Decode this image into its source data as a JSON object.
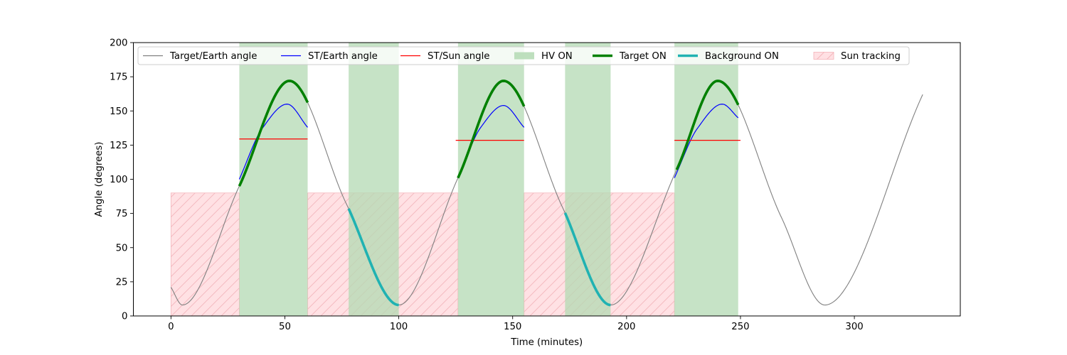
{
  "chart_data": {
    "type": "line",
    "title": "",
    "xlabel": "Time (minutes)",
    "ylabel": "Angle (degrees)",
    "xlim": [
      -16.5,
      346.5
    ],
    "ylim": [
      0,
      200
    ],
    "xticks": [
      0,
      50,
      100,
      150,
      200,
      250,
      300
    ],
    "yticks": [
      0,
      25,
      50,
      75,
      100,
      125,
      150,
      175,
      200
    ],
    "grid": false,
    "legend_position": "top-center",
    "colors": {
      "target_earth": "#808080",
      "st_earth": "#0000ff",
      "st_sun": "#ff0000",
      "hv_on": "#b3d9b3",
      "target_on": "#008000",
      "background_on": "#20b2b2",
      "sun_tracking_fill": "#ffe0e3",
      "sun_tracking_edge": "#f4b3b9"
    },
    "legend": [
      {
        "key": "target_earth",
        "label": "Target/Earth angle",
        "kind": "line"
      },
      {
        "key": "st_earth",
        "label": "ST/Earth angle",
        "kind": "line"
      },
      {
        "key": "st_sun",
        "label": "ST/Sun angle",
        "kind": "line"
      },
      {
        "key": "hv_on",
        "label": "HV ON",
        "kind": "patch"
      },
      {
        "key": "target_on",
        "label": "Target ON",
        "kind": "thickline"
      },
      {
        "key": "background_on",
        "label": "Background ON",
        "kind": "thickline"
      },
      {
        "key": "sun_tracking",
        "label": "Sun tracking",
        "kind": "hatch"
      }
    ],
    "hv_on_intervals": [
      [
        30,
        60
      ],
      [
        78,
        100
      ],
      [
        126,
        155
      ],
      [
        173,
        193
      ],
      [
        221,
        249
      ]
    ],
    "sun_tracking_intervals": [
      [
        0,
        30,
        90
      ],
      [
        60,
        126,
        90
      ],
      [
        155,
        221,
        90
      ]
    ],
    "target_earth_angle": {
      "x": [
        0,
        5,
        30,
        52,
        77,
        100,
        126,
        146,
        172,
        193,
        222,
        240,
        268,
        287,
        330
      ],
      "y": [
        21,
        8,
        95,
        172,
        82,
        8,
        101,
        172,
        79,
        8,
        107,
        172,
        72,
        8,
        162
      ]
    },
    "st_earth_angle": [
      {
        "x": [
          30,
          40,
          51,
          60
        ],
        "y": [
          100,
          137,
          155,
          138
        ]
      },
      {
        "x": [
          126,
          136,
          146,
          155
        ],
        "y": [
          101,
          138,
          154,
          138
        ]
      },
      {
        "x": [
          221,
          231,
          242,
          249
        ],
        "y": [
          101,
          137,
          155,
          145
        ]
      }
    ],
    "st_sun_angle": [
      {
        "x": [
          30,
          60
        ],
        "y": [
          129.5,
          129.5
        ]
      },
      {
        "x": [
          125,
          155
        ],
        "y": [
          128.5,
          128.5
        ]
      },
      {
        "x": [
          221,
          250
        ],
        "y": [
          128.5,
          128.5
        ]
      }
    ],
    "target_on": [
      [
        30,
        60
      ],
      [
        126,
        155
      ],
      [
        222,
        249
      ]
    ],
    "background_on": [
      [
        78,
        100
      ],
      [
        173,
        193
      ]
    ]
  }
}
